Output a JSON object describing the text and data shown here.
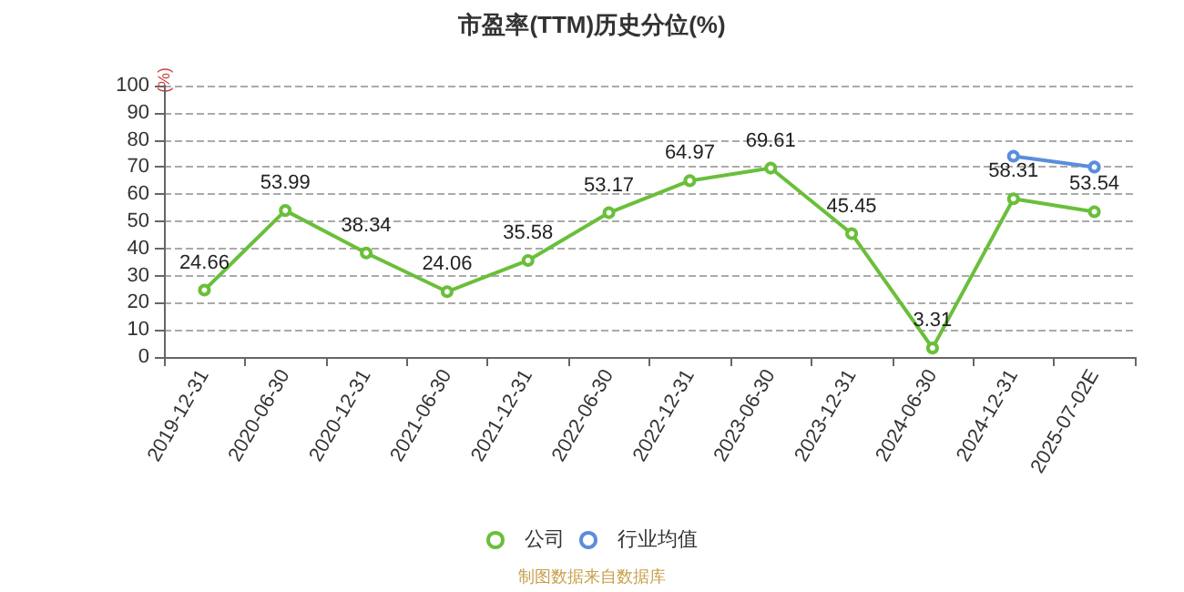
{
  "chart_data": {
    "type": "line",
    "title": "市盈率(TTM)历史分位(%)",
    "ylabel": "(%)",
    "categories": [
      "2019-12-31",
      "2020-06-30",
      "2020-12-31",
      "2021-06-30",
      "2021-12-31",
      "2022-06-30",
      "2022-12-31",
      "2023-06-30",
      "2023-12-31",
      "2024-06-30",
      "2024-12-31",
      "2025-07-02E"
    ],
    "series": [
      {
        "name": "公司",
        "color": "#6abf3a",
        "values": [
          24.66,
          53.99,
          38.34,
          24.06,
          35.58,
          53.17,
          64.97,
          69.61,
          45.45,
          3.31,
          58.31,
          53.54
        ],
        "value_labels": [
          "24.66",
          "53.99",
          "38.34",
          "24.06",
          "35.58",
          "53.17",
          "64.97",
          "69.61",
          "45.45",
          "3.31",
          "58.31",
          "53.54"
        ]
      },
      {
        "name": "行业均值",
        "color": "#5b8ddc",
        "values": [
          null,
          null,
          null,
          null,
          null,
          null,
          null,
          null,
          null,
          null,
          74,
          70
        ]
      }
    ],
    "ylim": [
      0,
      100
    ],
    "yticks": [
      0,
      10,
      20,
      30,
      40,
      50,
      60,
      70,
      80,
      90,
      100
    ],
    "grid": "y",
    "legend": "bottom",
    "marker": "circle",
    "line_style": "solid",
    "annotations": [
      "制图数据来自数据库"
    ]
  }
}
